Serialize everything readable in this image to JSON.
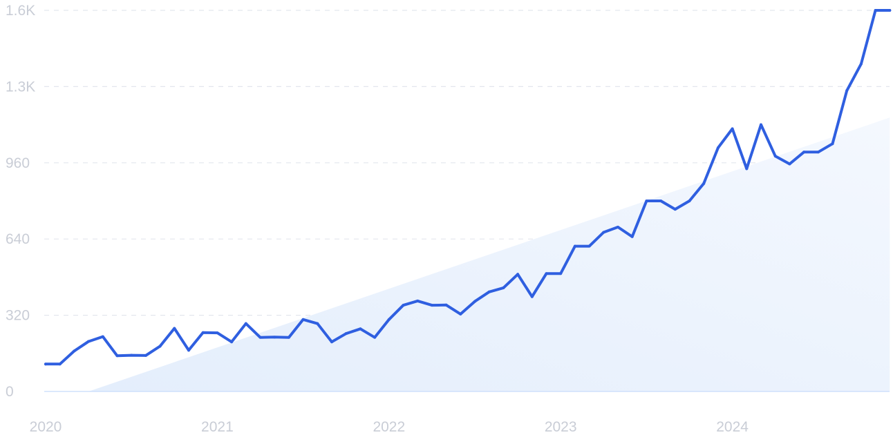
{
  "chart_data": {
    "type": "line",
    "x_ticks": [
      "2020",
      "2021",
      "2022",
      "2023",
      "2024"
    ],
    "y_ticks": [
      "0",
      "320",
      "640",
      "960",
      "1.3K",
      "1.6K"
    ],
    "y_tick_values": [
      0,
      320,
      640,
      960,
      1280,
      1600
    ],
    "ylim": [
      0,
      1600
    ],
    "xlim": [
      "2020-01",
      "2024-12"
    ],
    "grid": true,
    "colors": {
      "line": "#2f5fe0",
      "trend_fill": "#e7f0fd",
      "grid": "#e3e6ee",
      "tick": "#c9cdd6"
    },
    "trend": {
      "start": [
        "2020-04",
        0
      ],
      "end": [
        "2024-12",
        1150
      ]
    },
    "series": [
      {
        "x": [
          "2020-01",
          "2020-02",
          "2020-03",
          "2020-04",
          "2020-05",
          "2020-06",
          "2020-07",
          "2020-08",
          "2020-09",
          "2020-10",
          "2020-11",
          "2020-12",
          "2021-01",
          "2021-02",
          "2021-03",
          "2021-04",
          "2021-05",
          "2021-06",
          "2021-07",
          "2021-08",
          "2021-09",
          "2021-10",
          "2021-11",
          "2021-12",
          "2022-01",
          "2022-02",
          "2022-03",
          "2022-04",
          "2022-05",
          "2022-06",
          "2022-07",
          "2022-08",
          "2022-09",
          "2022-10",
          "2022-11",
          "2022-12",
          "2023-01",
          "2023-02",
          "2023-03",
          "2023-04",
          "2023-05",
          "2023-06",
          "2023-07",
          "2023-08",
          "2023-09",
          "2023-10",
          "2023-11",
          "2023-12",
          "2024-01",
          "2024-02",
          "2024-03",
          "2024-04",
          "2024-05",
          "2024-06",
          "2024-07",
          "2024-08",
          "2024-09",
          "2024-10",
          "2024-11",
          "2024-12"
        ],
        "values": [
          115,
          115,
          170,
          210,
          230,
          150,
          152,
          151,
          190,
          265,
          173,
          247,
          246,
          208,
          285,
          227,
          228,
          227,
          302,
          285,
          208,
          243,
          263,
          227,
          302,
          362,
          380,
          362,
          363,
          325,
          378,
          418,
          435,
          492,
          398,
          495,
          495,
          610,
          610,
          668,
          690,
          650,
          800,
          800,
          765,
          800,
          873,
          1023,
          1103,
          935,
          1120,
          988,
          955,
          1005,
          1005,
          1040,
          1263,
          1375,
          1600,
          1600
        ]
      }
    ]
  }
}
